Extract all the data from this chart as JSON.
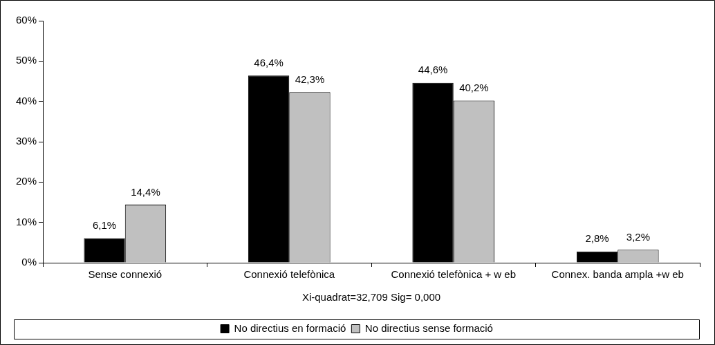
{
  "chart_data": {
    "type": "bar",
    "xlabel": "Xi-quadrat=32,709 Sig= 0,000",
    "categories": [
      "Sense connexió",
      "Connexió telefònica",
      "Connexió telefònica + w eb",
      "Connex. banda ampla +w eb"
    ],
    "series": [
      {
        "name": "No directius en formació",
        "color": "#000000",
        "values": [
          6.1,
          46.4,
          44.6,
          2.8
        ],
        "value_labels": [
          "6,1%",
          "46,4%",
          "44,6%",
          "2,8%"
        ]
      },
      {
        "name": "No directius sense formació",
        "color": "#c0c0c0",
        "values": [
          14.4,
          42.3,
          40.2,
          3.2
        ],
        "value_labels": [
          "14,4%",
          "42,3%",
          "40,2%",
          "3,2%"
        ]
      }
    ],
    "ylim": [
      0,
      60
    ],
    "yticks": [
      {
        "value": 0,
        "label": "0%"
      },
      {
        "value": 10,
        "label": "10%"
      },
      {
        "value": 20,
        "label": "20%"
      },
      {
        "value": 30,
        "label": "30%"
      },
      {
        "value": 40,
        "label": "40%"
      },
      {
        "value": 50,
        "label": "50%"
      },
      {
        "value": 60,
        "label": "60%"
      }
    ],
    "grid": false,
    "legend": "bottom"
  }
}
